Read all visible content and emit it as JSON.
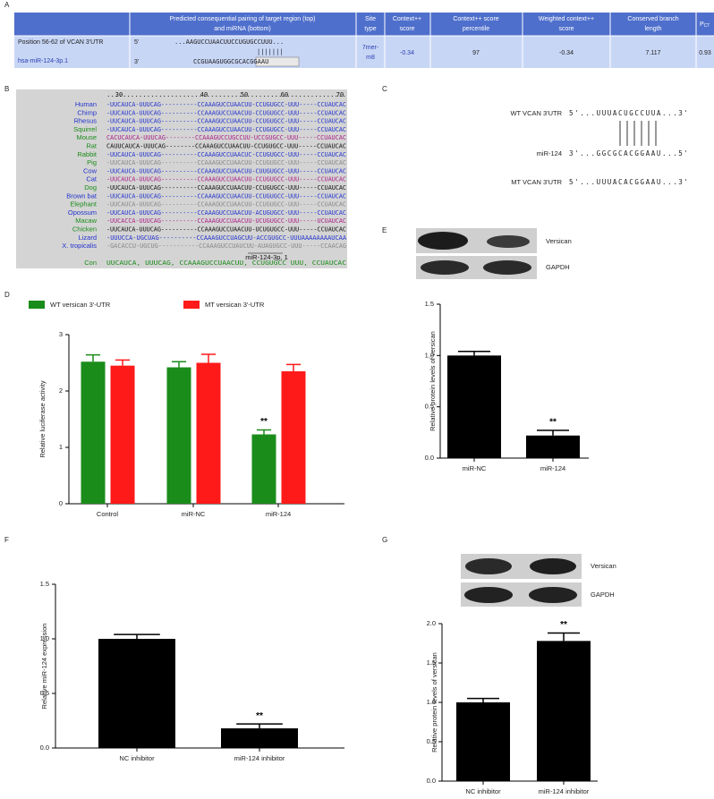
{
  "panel_a": {
    "label": "A",
    "header": [
      [
        "Predicted consequential pairing of target region (top)",
        "and miRNA (bottom)"
      ],
      [
        "Site",
        "type"
      ],
      [
        "Context++",
        "score"
      ],
      [
        "Context++ score",
        "percentile"
      ],
      [
        "Weighted context++",
        "score"
      ],
      [
        "Conserved branch",
        "length"
      ]
    ],
    "header_last": {
      "main": "P",
      "sub": "CT"
    },
    "row": {
      "position": "Position 56-62 of VCAN 3'UTR",
      "mirna": "hsa-miR-124-3p.1",
      "top_end": "5'",
      "top_seq": "...AAGUCCUAACUUCCUGUGCCUUU...",
      "pairs": "|||||||",
      "bottom_end": "3'",
      "bottom_seq": [
        "CCGUAAGUGGCG",
        "CACGGAAU"
      ],
      "site_type": [
        "7mer-",
        "m8"
      ],
      "context_score": "-0.34",
      "percentile": "97",
      "weighted": "-0.34",
      "branch_length": "7.117",
      "pct": "0.93"
    }
  },
  "panel_b": {
    "label": "B",
    "ruler": [
      "30",
      "40",
      "50",
      "60",
      "70"
    ],
    "rows": [
      {
        "name": "Human",
        "color": "#2233cc",
        "seq_color": "#2233cc",
        "seq": "-UUCAUCA-UUUCAG----------CCAAAGUCCUAACUU-CCUGUGCC-UUU-----CCUAUCAC"
      },
      {
        "name": "Chimp",
        "color": "#2233cc",
        "seq_color": "#2233cc",
        "seq": "-UUCAUCA-UUUCAG----------CCAAAGUCCUAACUU-CCUGUGCC-UUU-----CCUAUCAC"
      },
      {
        "name": "Rhesus",
        "color": "#2233cc",
        "seq_color": "#2233cc",
        "seq": "-UUCAUCA-UUUCAG----------CCAAAGUCCUAACUU-CCUGUGCC-UUU-----CCUAUCAC"
      },
      {
        "name": "Squirrel",
        "color": "#1a8c1a",
        "seq_color": "#2233cc",
        "seq": "-UUCAUCA-UUUCAG----------CCAAAGUCCUAACUU-CCUGUGCC-UUU-----CCUAUCAC"
      },
      {
        "name": "Mouse",
        "color": "#1a8c1a",
        "seq_color": "#aa2288",
        "seq": "CACUCAUCA-UUUCAG--------CCAAAGUCCUGCCUU-UCCGUGCC-UUU-----CCUAUCAC"
      },
      {
        "name": "Rat",
        "color": "#1a8c1a",
        "seq_color": "#111111",
        "seq": "CAUUCAUCA-UUUCAG--------CCAAAGUCCUAACUU-CCUGUGCC-UUU-----CCUAUCAC"
      },
      {
        "name": "Rabbit",
        "color": "#1a8c1a",
        "seq_color": "#2233cc",
        "seq": "-UUCAUCA-UUUCAG----------CCAAAGUCCUAACUC-CCUGUGCC-UUU-----CCUAUCAC"
      },
      {
        "name": "Pig",
        "color": "#1a8c1a",
        "seq_color": "#888888",
        "seq": "-UUCAUCA-UUUCAG----------CCAAAGUCCUAACUU-CCUGUGCC-UUU-----CCUAUCAC"
      },
      {
        "name": "Cow",
        "color": "#2233cc",
        "seq_color": "#2233cc",
        "seq": "-UUCAUCA-UUUCAG----------CCAAAGUCCUAACUU-CUUGUGCC-UUU-----CCUAUCAC"
      },
      {
        "name": "Cat",
        "color": "#2233cc",
        "seq_color": "#aa2288",
        "seq": "-UUCAUCA-UUUCAG----------CCAAAGUCCUAACUU-CCUGUGCC-UUU-----CCUAUCAC"
      },
      {
        "name": "Dog",
        "color": "#1a8c1a",
        "seq_color": "#111111",
        "seq": "-UUCAUCA-UUUCAG----------CCAAAGUCCUAACUU-CCUGUGCC-UUU-----CCUAUCAC"
      },
      {
        "name": "Brown bat",
        "color": "#2233cc",
        "seq_color": "#2233cc",
        "seq": "-UUCAUCA-UUUCAG----------CCAAAGUCCUAACUU-CCUGUGCC-UUU-----CCUAUCAC"
      },
      {
        "name": "Elephant",
        "color": "#1a8c1a",
        "seq_color": "#888888",
        "seq": "-UUCAUCA-UUUCAG----------CCAAAGUCCUAACUU-CCUGUGCC-UUU-----CCUAUCAC"
      },
      {
        "name": "Opossum",
        "color": "#2233cc",
        "seq_color": "#2233cc",
        "seq": "-UUCAUCA-UUUCAG----------CCAAAGUCCUAACUU-ACUGUGCC-UUU-----CCUAUCAC"
      },
      {
        "name": "Macaw",
        "color": "#1a8c1a",
        "seq_color": "#aa2288",
        "seq": "-UUCACCA-UUUCAG----------CCAAAGUCCUAACUU-UCUGUGCC-UUU-----UCUAUCAC"
      },
      {
        "name": "Chicken",
        "color": "#1a8c1a",
        "seq_color": "#111111",
        "seq": "-UUCAUCA-UUUCAG----------CCAAAGUCCUAACUU-UCUGUGCC-UUU-----CCUAUCAC"
      },
      {
        "name": "Lizard",
        "color": "#2233cc",
        "seq_color": "#2233cc",
        "seq": "-UUUCCA-UGCUAG----------CCAAAGUCCUAGCUU-ACCGUGCC-UUUAAAAAAAAUCAA"
      },
      {
        "name": "X. tropicalis",
        "color": "#2233cc",
        "seq_color": "#888888",
        "seq": "-GACACCU-UGCUG-----------CCAAAGUCCUAUCUU-AUAGUGCC-UUU-----CCAACAG"
      }
    ],
    "mirna_label": "miR-124-3p, 1",
    "consensus": {
      "name": "Con",
      "color": "#1a8c1a",
      "seq_color": "#1a8c1a",
      "seq": " UUCAUCA, UUUCAG,         CCAAAGUCCUAACUU, CCUGUGCC  UUU,     CCUAUCAC"
    }
  },
  "panel_c": {
    "label": "C",
    "wt_label": "WT VCAN 3'UTR",
    "wt_seq": "5'...UUUACUGCCUUA...3'",
    "mirna_label": "miR-124",
    "mirna_seq": "3'...GGCGCACGGAAU...5'",
    "mt_label": "MT VCAN 3'UTR",
    "mt_seq": "5'...UUUACACGGAAU...3'"
  },
  "blot_e": {
    "label": "E",
    "bands": [
      "Versican",
      "GAPDH"
    ]
  },
  "blot_g": {
    "label": "G",
    "bands": [
      "Versican",
      "GAPDH"
    ]
  },
  "chart_data": [
    {
      "type": "bar",
      "label": "D",
      "ylabel": "Relative luciferase activity",
      "categories": [
        "Control",
        "miR-NC",
        "miR-124"
      ],
      "series": [
        {
          "name": "WT versican 3'-UTR",
          "color": "#1a8c1a",
          "values": [
            2.52,
            2.42,
            1.23
          ],
          "errors": [
            0.12,
            0.1,
            0.08
          ],
          "significance": [
            null,
            null,
            "**"
          ]
        },
        {
          "name": "MT versican 3'-UTR",
          "color": "#ff1a1a",
          "values": [
            2.45,
            2.5,
            2.35
          ],
          "errors": [
            0.1,
            0.15,
            0.12
          ]
        }
      ],
      "ylim": [
        0,
        3
      ],
      "yticks": [
        0,
        1,
        2,
        3
      ],
      "legend": "top",
      "grid": false
    },
    {
      "type": "bar",
      "ylabel": "Relative protein levels of versican",
      "categories": [
        "miR-NC",
        "miR-124"
      ],
      "series": [
        {
          "color": "#000000",
          "values": [
            1.0,
            0.22
          ],
          "errors": [
            0.04,
            0.05
          ],
          "significance": [
            null,
            "**"
          ]
        }
      ],
      "ylim": [
        0,
        1.5
      ],
      "yticks": [
        {
          "value": 0,
          "label": "0.0"
        },
        0.5,
        {
          "value": 1,
          "label": "1.0"
        },
        1.5
      ],
      "grid": false
    },
    {
      "type": "bar",
      "label": "F",
      "ylabel": "Relative miR-124 expression",
      "categories": [
        "NC inhibitor",
        "miR-124 inhibitor"
      ],
      "series": [
        {
          "color": "#000000",
          "values": [
            1.0,
            0.18
          ],
          "errors": [
            0.04,
            0.04
          ],
          "significance": [
            null,
            "**"
          ]
        }
      ],
      "ylim": [
        0,
        1.5
      ],
      "yticks": [
        {
          "value": 0,
          "label": "0.0"
        },
        0.5,
        {
          "value": 1,
          "label": "1.0"
        },
        1.5
      ],
      "grid": false
    },
    {
      "type": "bar",
      "ylabel": "Relative protein levels of versican",
      "categories": [
        "NC inhibitor",
        "miR-124 inhibitor"
      ],
      "series": [
        {
          "color": "#000000",
          "values": [
            1.0,
            1.78
          ],
          "errors": [
            0.05,
            0.1
          ],
          "significance": [
            null,
            "**"
          ]
        }
      ],
      "ylim": [
        0,
        2
      ],
      "yticks": [
        {
          "value": 0,
          "label": "0.0"
        },
        0.5,
        {
          "value": 1,
          "label": "1.0"
        },
        1.5,
        {
          "value": 2,
          "label": "2.0"
        }
      ],
      "grid": false
    }
  ]
}
